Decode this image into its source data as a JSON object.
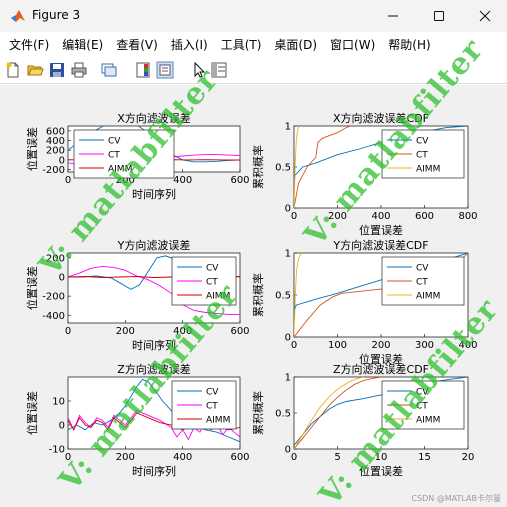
{
  "window": {
    "title": "Figure 3",
    "minimize_icon": "minimize-icon",
    "maximize_icon": "maximize-icon",
    "close_icon": "close-icon"
  },
  "menu": [
    "文件(F)",
    "编辑(E)",
    "查看(V)",
    "插入(I)",
    "工具(T)",
    "桌面(D)",
    "窗口(W)",
    "帮助(H)"
  ],
  "toolbar_icons": [
    "new-figure-icon",
    "open-file-icon",
    "save-icon",
    "print-icon",
    "link-plot-icon",
    "insert-colorbar-icon",
    "insert-legend-icon",
    "pointer-icon",
    "property-inspector-icon"
  ],
  "colors": {
    "cv": "#0072BD",
    "ct": "#FF00FF",
    "aimm": "#CC0000",
    "cdf_cv": "#0072BD",
    "cdf_ct": "#D95319",
    "cdf_aimm": "#EDB120",
    "watermark": "#28BE28"
  },
  "watermark": "V: matlabfilter",
  "credit": "CSDN @MATLAB卡尔曼",
  "chart_data": [
    {
      "type": "line",
      "title": "X方向滤波误差",
      "xlabel": "时间序列",
      "ylabel": "位置误差",
      "xlim": [
        0,
        600
      ],
      "ylim": [
        -250,
        700
      ],
      "xticks": [
        0,
        200,
        400,
        600
      ],
      "yticks": [
        -200,
        0,
        200,
        400,
        600
      ],
      "legend": [
        "CV",
        "CT",
        "AIMM"
      ],
      "series": [
        {
          "name": "CV",
          "x": [
            0,
            40,
            80,
            120,
            160,
            200,
            240,
            280,
            320,
            360,
            400,
            440,
            480,
            520,
            560,
            600
          ],
          "y": [
            200,
            380,
            560,
            690,
            760,
            780,
            720,
            560,
            330,
            120,
            0,
            -40,
            -40,
            -30,
            -10,
            0
          ]
        },
        {
          "name": "CT",
          "x": [
            0,
            40,
            80,
            120,
            150,
            180,
            210,
            240,
            280,
            320,
            360,
            400,
            440,
            480,
            520,
            560,
            600
          ],
          "y": [
            -60,
            -100,
            -170,
            -240,
            -260,
            -220,
            -130,
            -30,
            30,
            60,
            60,
            80,
            100,
            110,
            110,
            100,
            90
          ]
        },
        {
          "name": "AIMM",
          "x": [
            0,
            60,
            120,
            180,
            240,
            300,
            360,
            420,
            480,
            540,
            600
          ],
          "y": [
            5,
            -5,
            10,
            -5,
            5,
            -5,
            5,
            0,
            5,
            0,
            -5
          ]
        }
      ]
    },
    {
      "type": "line",
      "title": "X方向滤波误差CDF",
      "xlabel": "位置误差",
      "ylabel": "累积概率",
      "xlim": [
        0,
        800
      ],
      "ylim": [
        0,
        1
      ],
      "xticks": [
        0,
        200,
        400,
        600,
        800
      ],
      "yticks": [
        0,
        0.5,
        1
      ],
      "legend": [
        "CV",
        "CT",
        "AIMM"
      ],
      "series": [
        {
          "name": "CV",
          "x": [
            0,
            5,
            40,
            100,
            200,
            300,
            400,
            500,
            600,
            700,
            800
          ],
          "y": [
            0.3,
            0.4,
            0.5,
            0.55,
            0.65,
            0.72,
            0.8,
            0.88,
            0.93,
            0.98,
            1
          ]
        },
        {
          "name": "CT",
          "x": [
            0,
            20,
            60,
            100,
            110,
            130,
            160,
            200,
            240,
            260
          ],
          "y": [
            0,
            0.3,
            0.5,
            0.62,
            0.8,
            0.85,
            0.88,
            0.92,
            0.98,
            1
          ]
        },
        {
          "name": "AIMM",
          "x": [
            0,
            5,
            10,
            15,
            20,
            25
          ],
          "y": [
            0,
            0.5,
            0.8,
            0.93,
            0.98,
            1
          ]
        }
      ]
    },
    {
      "type": "line",
      "title": "Y方向滤波误差",
      "xlabel": "时间序列",
      "ylabel": "位置误差",
      "xlim": [
        0,
        600
      ],
      "ylim": [
        -480,
        250
      ],
      "xticks": [
        0,
        200,
        400,
        600
      ],
      "yticks": [
        -400,
        -200,
        0,
        200
      ],
      "legend": [
        "CV",
        "CT",
        "AIMM"
      ],
      "series": [
        {
          "name": "CV",
          "x": [
            0,
            50,
            100,
            150,
            180,
            220,
            250,
            280,
            310,
            340,
            380,
            420,
            460,
            500,
            560,
            600
          ],
          "y": [
            0,
            0,
            10,
            -10,
            -60,
            -130,
            -80,
            60,
            200,
            220,
            180,
            110,
            90,
            50,
            20,
            0
          ]
        },
        {
          "name": "CT",
          "x": [
            0,
            40,
            80,
            120,
            160,
            200,
            240,
            280,
            320,
            360,
            400,
            440,
            480,
            520,
            560,
            600
          ],
          "y": [
            0,
            40,
            90,
            110,
            100,
            70,
            10,
            -30,
            -90,
            -170,
            -290,
            -350,
            -370,
            -380,
            -390,
            -390
          ]
        },
        {
          "name": "AIMM",
          "x": [
            0,
            60,
            120,
            180,
            240,
            300,
            360,
            420,
            480,
            540,
            600
          ],
          "y": [
            0,
            5,
            -5,
            0,
            5,
            -5,
            0,
            5,
            -5,
            0,
            5
          ]
        }
      ]
    },
    {
      "type": "line",
      "title": "Y方向滤波误差CDF",
      "xlabel": "位置误差",
      "ylabel": "累积概率",
      "xlim": [
        0,
        400
      ],
      "ylim": [
        0,
        1
      ],
      "xticks": [
        0,
        100,
        200,
        300,
        400
      ],
      "yticks": [
        0,
        0.5,
        1
      ],
      "legend": [
        "CV",
        "CT",
        "AIMM"
      ],
      "series": [
        {
          "name": "CV",
          "x": [
            0,
            5,
            50,
            100,
            150,
            200,
            250,
            300,
            350,
            400
          ],
          "y": [
            0.3,
            0.38,
            0.45,
            0.52,
            0.6,
            0.68,
            0.76,
            0.83,
            0.92,
            1
          ]
        },
        {
          "name": "CT",
          "x": [
            0,
            30,
            60,
            90,
            110,
            200,
            300,
            380,
            390,
            400
          ],
          "y": [
            0,
            0.2,
            0.38,
            0.48,
            0.52,
            0.57,
            0.62,
            0.62,
            0.95,
            1
          ]
        },
        {
          "name": "AIMM",
          "x": [
            0,
            3,
            6,
            10,
            15,
            20
          ],
          "y": [
            0,
            0.5,
            0.8,
            0.93,
            0.98,
            1
          ]
        }
      ]
    },
    {
      "type": "line",
      "title": "Z方向滤波误差",
      "xlabel": "时间序列",
      "ylabel": "位置误差",
      "xlim": [
        0,
        600
      ],
      "ylim": [
        -10,
        20
      ],
      "xticks": [
        0,
        200,
        400,
        600
      ],
      "yticks": [
        -10,
        0,
        10
      ],
      "legend": [
        "CV",
        "CT",
        "AIMM"
      ],
      "series": [
        {
          "name": "CV",
          "x": [
            0,
            30,
            60,
            90,
            120,
            150,
            180,
            200,
            220,
            240,
            260,
            280,
            300,
            330,
            360,
            400,
            440,
            480,
            520,
            560,
            600
          ],
          "y": [
            -2,
            0,
            -2,
            1,
            0,
            2,
            5,
            8,
            12,
            16,
            19,
            18,
            15,
            10,
            6,
            2,
            0,
            -2,
            -3,
            -5,
            -7
          ]
        },
        {
          "name": "CT",
          "x": [
            0,
            20,
            40,
            60,
            80,
            100,
            120,
            140,
            160,
            180,
            200,
            240,
            280,
            320,
            360,
            380,
            400,
            420,
            440,
            460,
            480,
            500,
            520,
            540,
            560,
            580,
            600
          ],
          "y": [
            3,
            -2,
            4,
            1,
            -1,
            3,
            2,
            -1,
            4,
            2,
            0,
            6,
            4,
            2,
            -1,
            -5,
            -2,
            -6,
            -1,
            -3,
            2,
            -2,
            0,
            -4,
            -1,
            -3,
            -5
          ]
        },
        {
          "name": "AIMM",
          "x": [
            0,
            20,
            40,
            60,
            80,
            100,
            120,
            140,
            160,
            180,
            200,
            240,
            280,
            320,
            360,
            400,
            440,
            480,
            520,
            560,
            600
          ],
          "y": [
            2,
            -2,
            3,
            0,
            -1,
            2,
            1,
            -2,
            3,
            1,
            -1,
            5,
            3,
            1,
            0,
            -2,
            0,
            -1,
            0,
            -2,
            -1
          ]
        }
      ]
    },
    {
      "type": "line",
      "title": "Z方向滤波误差CDF",
      "xlabel": "位置误差",
      "ylabel": "累积概率",
      "xlim": [
        0,
        20
      ],
      "ylim": [
        0,
        1
      ],
      "xticks": [
        0,
        5,
        10,
        15,
        20
      ],
      "yticks": [
        0,
        0.5,
        1
      ],
      "legend": [
        "CV",
        "CT",
        "AIMM"
      ],
      "series": [
        {
          "name": "CV",
          "x": [
            0,
            1,
            2,
            3,
            4,
            5,
            6,
            8,
            10,
            12,
            14,
            16,
            18,
            20
          ],
          "y": [
            0.05,
            0.2,
            0.35,
            0.45,
            0.55,
            0.62,
            0.66,
            0.7,
            0.75,
            0.82,
            0.88,
            0.93,
            0.97,
            1
          ]
        },
        {
          "name": "CT",
          "x": [
            0,
            1,
            2,
            3,
            4,
            5,
            6,
            7,
            8,
            9,
            10
          ],
          "y": [
            0,
            0.15,
            0.3,
            0.45,
            0.6,
            0.72,
            0.82,
            0.9,
            0.95,
            0.98,
            1
          ]
        },
        {
          "name": "AIMM",
          "x": [
            0,
            1,
            2,
            3,
            4,
            5,
            6,
            7,
            8
          ],
          "y": [
            0,
            0.2,
            0.4,
            0.58,
            0.72,
            0.83,
            0.91,
            0.97,
            1
          ]
        }
      ]
    }
  ]
}
